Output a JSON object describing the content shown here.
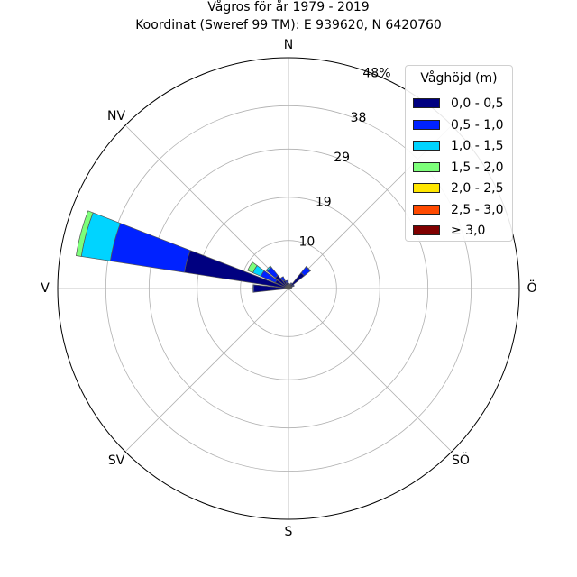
{
  "title": [
    "Vågros för år 1979 - 2019",
    "Koordinat (Sweref 99 TM): E 939620, N 6420760"
  ],
  "chart_data": {
    "type": "wind-rose",
    "direction_labels": [
      "N",
      "NV",
      "V",
      "SV",
      "S",
      "SÖ",
      "Ö",
      "NÖ"
    ],
    "radial_ticks": [
      10,
      19,
      29,
      38,
      48
    ],
    "radial_tick_labels": [
      "10",
      "19",
      "29",
      "38",
      "48%"
    ],
    "rmax": 48,
    "legend_title": "Våghöjd (m)",
    "bins": [
      {
        "name": "0,0 - 0,5",
        "color": "#000080"
      },
      {
        "name": "0,5 - 1,0",
        "color": "#0022ff"
      },
      {
        "name": "1,0 - 1,5",
        "color": "#00d4ff"
      },
      {
        "name": "1,5 - 2,0",
        "color": "#7dff7a"
      },
      {
        "name": "2,0 - 2,5",
        "color": "#ffe600"
      },
      {
        "name": "2,5 - 3,0",
        "color": "#ff4a00"
      },
      {
        "name": "≥ 3,0",
        "color": "#800000"
      }
    ],
    "sectors": [
      {
        "angle_deg": 0,
        "values": [
          0.8,
          0.3,
          0,
          0,
          0,
          0,
          0
        ]
      },
      {
        "angle_deg": 15,
        "values": [
          0.8,
          0.2,
          0,
          0,
          0,
          0,
          0
        ]
      },
      {
        "angle_deg": 30,
        "values": [
          1.0,
          0.3,
          0,
          0,
          0,
          0,
          0
        ]
      },
      {
        "angle_deg": 45,
        "values": [
          4.2,
          1.6,
          0.1,
          0,
          0,
          0,
          0
        ]
      },
      {
        "angle_deg": 60,
        "values": [
          1.0,
          0.3,
          0,
          0,
          0,
          0,
          0
        ]
      },
      {
        "angle_deg": 75,
        "values": [
          0.5,
          0.2,
          0,
          0,
          0,
          0,
          0
        ]
      },
      {
        "angle_deg": 90,
        "values": [
          0.3,
          0.1,
          0,
          0,
          0,
          0,
          0
        ]
      },
      {
        "angle_deg": 105,
        "values": [
          0.2,
          0,
          0,
          0,
          0,
          0,
          0
        ]
      },
      {
        "angle_deg": 120,
        "values": [
          0.2,
          0,
          0,
          0,
          0,
          0,
          0
        ]
      },
      {
        "angle_deg": 135,
        "values": [
          0.2,
          0,
          0,
          0,
          0,
          0,
          0
        ]
      },
      {
        "angle_deg": 150,
        "values": [
          0.2,
          0,
          0,
          0,
          0,
          0,
          0
        ]
      },
      {
        "angle_deg": 165,
        "values": [
          0.2,
          0,
          0,
          0,
          0,
          0,
          0
        ]
      },
      {
        "angle_deg": 180,
        "values": [
          0.2,
          0,
          0,
          0,
          0,
          0,
          0
        ]
      },
      {
        "angle_deg": 195,
        "values": [
          0.2,
          0,
          0,
          0,
          0,
          0,
          0
        ]
      },
      {
        "angle_deg": 210,
        "values": [
          0.2,
          0,
          0,
          0,
          0,
          0,
          0
        ]
      },
      {
        "angle_deg": 225,
        "values": [
          0.2,
          0,
          0,
          0,
          0,
          0,
          0
        ]
      },
      {
        "angle_deg": 240,
        "values": [
          0.2,
          0,
          0,
          0,
          0,
          0,
          0
        ]
      },
      {
        "angle_deg": 255,
        "values": [
          0.3,
          0,
          0,
          0,
          0,
          0,
          0
        ]
      },
      {
        "angle_deg": 270,
        "values": [
          7.2,
          0.2,
          0,
          0,
          0,
          0,
          0
        ]
      },
      {
        "angle_deg": 285,
        "values": [
          21.9,
          15.6,
          6.1,
          1.1,
          0,
          0,
          0
        ]
      },
      {
        "angle_deg": 300,
        "values": [
          3.0,
          3.3,
          1.8,
          1.2,
          0,
          0,
          0
        ]
      },
      {
        "angle_deg": 315,
        "values": [
          3.5,
          2.2,
          0.3,
          0,
          0,
          0,
          0
        ]
      },
      {
        "angle_deg": 330,
        "values": [
          1.8,
          0.9,
          0,
          0,
          0,
          0,
          0
        ]
      },
      {
        "angle_deg": 345,
        "values": [
          1.2,
          0.5,
          0,
          0,
          0,
          0,
          0
        ]
      }
    ]
  }
}
